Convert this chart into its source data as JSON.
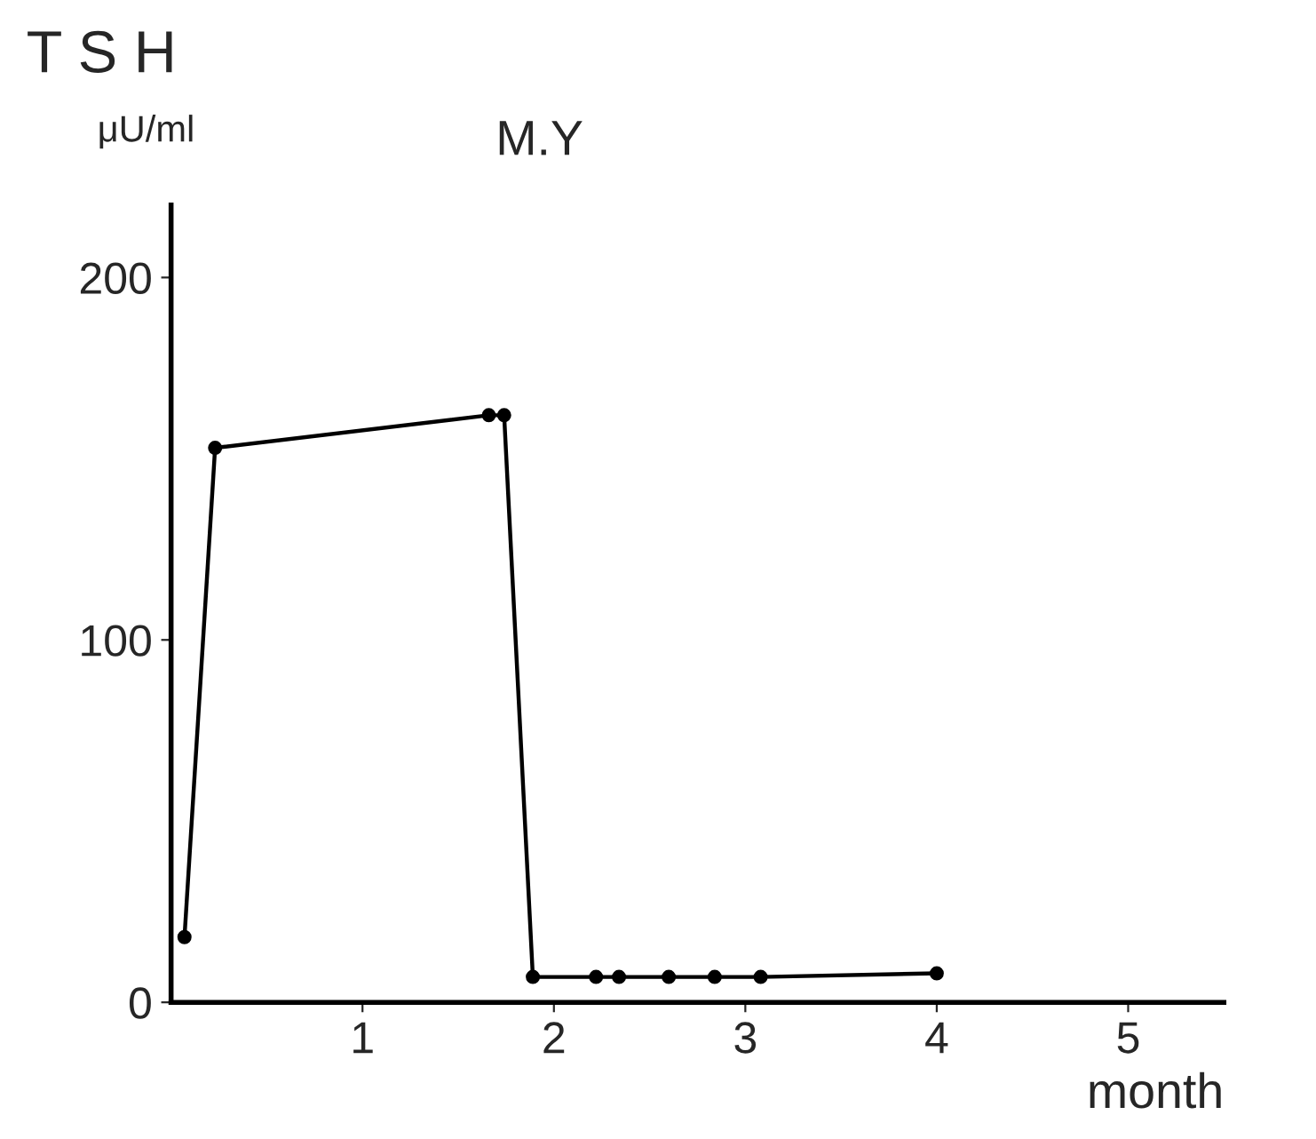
{
  "chart_data": {
    "type": "line",
    "title": "T S H",
    "subtitle": "M.Y",
    "ylabel": "μU/ml",
    "xlabel": "month",
    "x": [
      0.07,
      0.23,
      1.66,
      1.74,
      1.89,
      2.22,
      2.34,
      2.6,
      2.84,
      3.08,
      4.0
    ],
    "series": [
      {
        "color": "#000000",
        "values": [
          18,
          153,
          162,
          162,
          7,
          7,
          7,
          7,
          7,
          7,
          8
        ]
      }
    ],
    "xlim": [
      0,
      5.5
    ],
    "xticks": [
      1,
      2,
      3,
      4,
      5
    ],
    "ylim": [
      0,
      220
    ],
    "yticks": [
      0,
      100,
      200
    ],
    "marker": "circle",
    "line_style": "solid",
    "grid": false,
    "legend": false
  }
}
